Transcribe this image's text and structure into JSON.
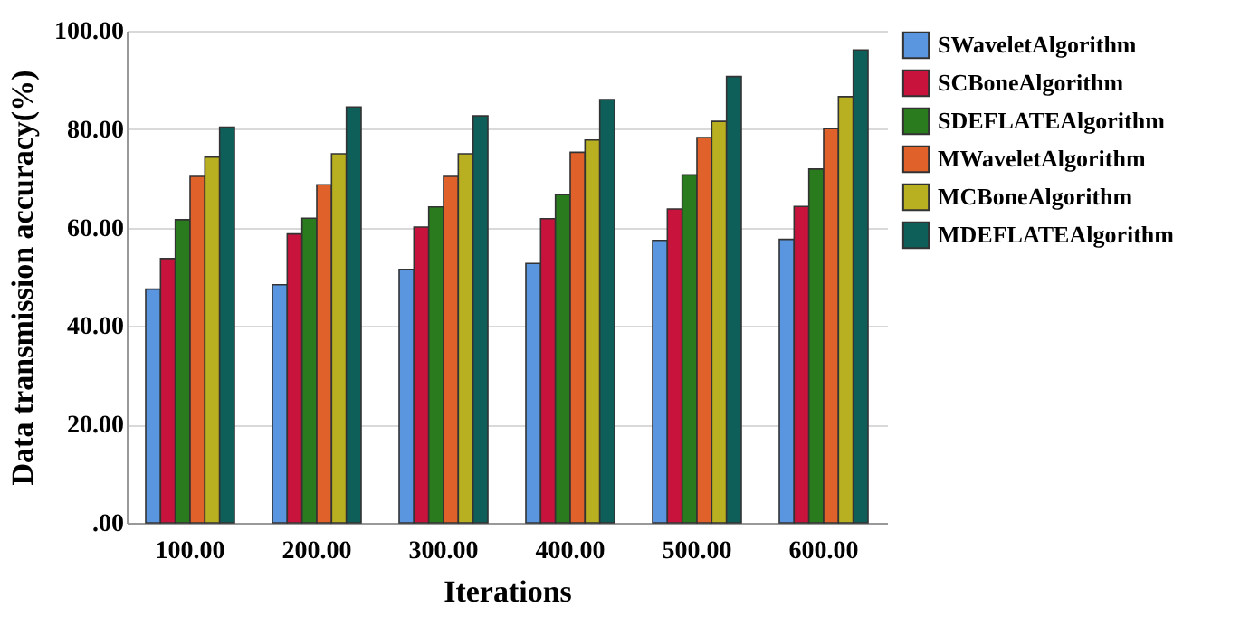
{
  "chart_data": {
    "type": "bar",
    "xlabel": "Iterations",
    "ylabel": "Data transmission accuracy(%)",
    "categories": [
      "100.00",
      "200.00",
      "300.00",
      "400.00",
      "500.00",
      "600.00"
    ],
    "series": [
      {
        "name": "SWaveletAlgorithm",
        "color": "#5a96e0",
        "values": [
          47.5,
          48.4,
          51.5,
          52.7,
          57.4,
          57.6
        ]
      },
      {
        "name": "SCBoneAlgorithm",
        "color": "#c8143c",
        "values": [
          53.7,
          58.7,
          60.1,
          61.8,
          63.8,
          64.3
        ]
      },
      {
        "name": "SDEFLATEAlgorithm",
        "color": "#2a7a1e",
        "values": [
          61.6,
          61.9,
          64.2,
          66.7,
          70.7,
          71.9
        ]
      },
      {
        "name": "MWaveletAlgorithm",
        "color": "#e0622a",
        "values": [
          70.4,
          68.7,
          70.4,
          75.3,
          78.3,
          80.1
        ]
      },
      {
        "name": "MCBoneAlgorithm",
        "color": "#b8b020",
        "values": [
          74.3,
          75.0,
          75.0,
          77.8,
          81.6,
          86.6
        ]
      },
      {
        "name": "MDEFLATEAlgorithm",
        "color": "#0e5e5a",
        "values": [
          80.4,
          84.5,
          82.7,
          86.0,
          90.7,
          96.1
        ]
      }
    ],
    "ylim": [
      0,
      100
    ],
    "yticks": [
      {
        "value": 0,
        "label": ".00"
      },
      {
        "value": 20,
        "label": "20.00"
      },
      {
        "value": 40,
        "label": "40.00"
      },
      {
        "value": 60,
        "label": "60.00"
      },
      {
        "value": 80,
        "label": "80.00"
      },
      {
        "value": 100,
        "label": "100.00"
      }
    ],
    "grid": "y",
    "legend": "top right"
  }
}
